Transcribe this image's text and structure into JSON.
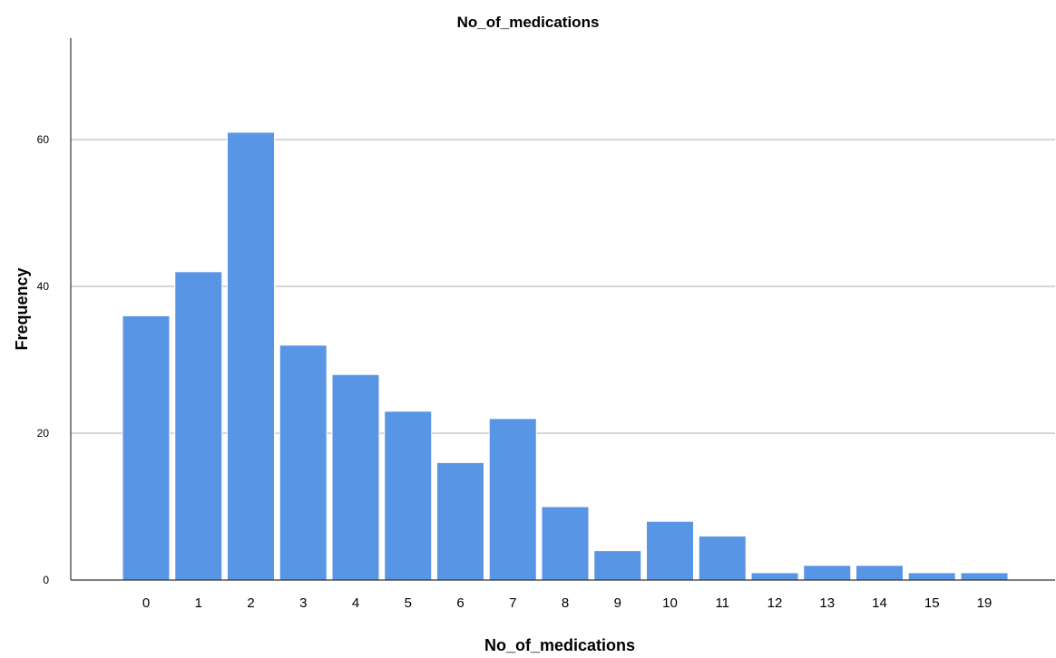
{
  "chart_data": {
    "type": "bar",
    "title": "No_of_medications",
    "xlabel": "No_of_medications",
    "ylabel": "Frequency",
    "categories": [
      "0",
      "1",
      "2",
      "3",
      "4",
      "5",
      "6",
      "7",
      "8",
      "9",
      "10",
      "11",
      "12",
      "13",
      "14",
      "15",
      "19"
    ],
    "values": [
      36,
      42,
      61,
      32,
      28,
      23,
      16,
      22,
      10,
      4,
      8,
      6,
      1,
      2,
      2,
      1,
      1
    ],
    "ylim": [
      0,
      75
    ],
    "yticks": [
      0,
      20,
      40,
      60
    ],
    "grid": "horizontal",
    "bar_color": "#5896E5",
    "bar_edge_color": "#ffffff",
    "gridline_color": "#c8c8c8",
    "axis_color": "#333333"
  }
}
